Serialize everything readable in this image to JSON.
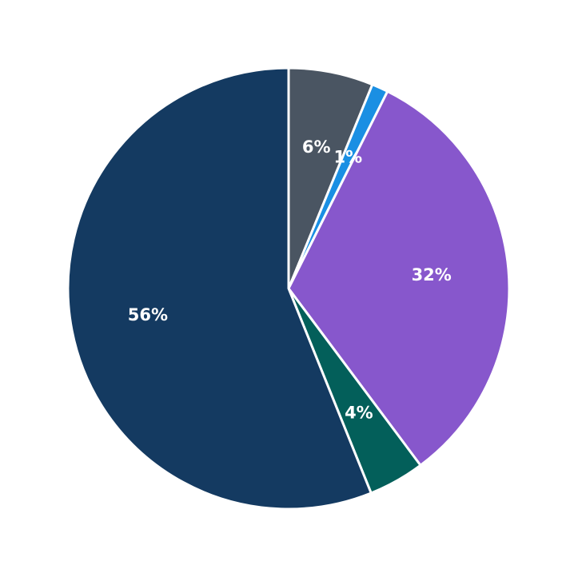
{
  "chart_data": {
    "type": "pie",
    "values": [
      6.2,
      1.2,
      32.4,
      4.1,
      56.1
    ],
    "value_labels": [
      "6%",
      "1%",
      "32%",
      "4%",
      "56%"
    ],
    "colors": [
      "#4a5562",
      "#1a8fe3",
      "#8757cc",
      "#035f5a",
      "#143a61"
    ]
  }
}
